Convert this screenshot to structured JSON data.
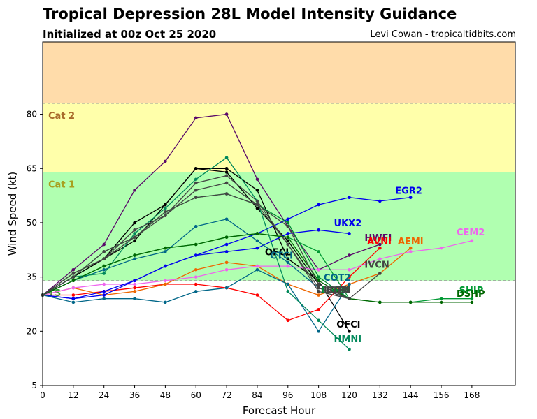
{
  "header": {
    "title": "Tropical Depression 28L Model Intensity Guidance",
    "subtitle": "Initialized at 00z Oct 25 2020",
    "credit": "Levi Cowan - tropicaltidbits.com"
  },
  "chart_data": {
    "type": "line",
    "xlabel": "Forecast Hour",
    "ylabel": "Wind Speed (kt)",
    "xlim": [
      0,
      185
    ],
    "ylim": [
      5,
      100
    ],
    "xticks": [
      0,
      12,
      24,
      36,
      48,
      60,
      72,
      84,
      96,
      108,
      120,
      132,
      144,
      156,
      168
    ],
    "yticks": [
      5,
      20,
      35,
      50,
      65,
      80
    ],
    "bands": [
      {
        "name": "Cat 2",
        "from": 83,
        "to": 100,
        "color": "#ffdcaa",
        "label_color": "#a86a2a"
      },
      {
        "name": "Cat 1",
        "from": 64,
        "to": 83,
        "color": "#ffffaa",
        "label_color": "#a8a020"
      },
      {
        "name": "TS",
        "from": 34,
        "to": 64,
        "color": "#b0ffb0",
        "label_color": "#2aa02a"
      }
    ],
    "series": [
      {
        "name": "OFCI",
        "color": "#000000",
        "x": [
          0,
          12,
          24,
          36,
          48,
          60,
          72,
          84,
          96,
          108,
          120
        ],
        "values": [
          30,
          35,
          40,
          45,
          55,
          65,
          65,
          59,
          40,
          34,
          20
        ]
      },
      {
        "name": "OFCL",
        "color": "#000000",
        "x": [
          0,
          12,
          24,
          36,
          48,
          60,
          72,
          84,
          96,
          108,
          120
        ],
        "values": [
          30,
          35,
          40,
          50,
          55,
          65,
          64,
          54,
          45,
          33,
          29
        ]
      },
      {
        "name": "HWFI",
        "color": "#5a0a6a",
        "x": [
          0,
          12,
          24,
          36,
          48,
          60,
          72,
          84,
          96,
          108,
          120,
          132
        ],
        "values": [
          30,
          37,
          44,
          59,
          67,
          79,
          80,
          62,
          49,
          37,
          41,
          44
        ]
      },
      {
        "name": "AVNI",
        "color": "#ff0000",
        "x": [
          0,
          12,
          24,
          36,
          48,
          60,
          72,
          84,
          96,
          108,
          120,
          132
        ],
        "values": [
          30,
          30,
          31,
          32,
          33,
          33,
          32,
          30,
          23,
          26,
          35,
          43
        ]
      },
      {
        "name": "AEMI",
        "color": "#ee6600",
        "x": [
          0,
          12,
          24,
          36,
          48,
          60,
          72,
          84,
          96,
          108,
          120,
          132,
          144
        ],
        "values": [
          30,
          32,
          30,
          31,
          33,
          37,
          39,
          38,
          33,
          30,
          33,
          36,
          43
        ]
      },
      {
        "name": "CEM2",
        "color": "#ee66ee",
        "x": [
          0,
          12,
          24,
          36,
          48,
          60,
          72,
          84,
          96,
          108,
          120,
          132,
          144,
          156,
          168
        ],
        "values": [
          30,
          32,
          33,
          33,
          34,
          35,
          37,
          38,
          38,
          37,
          37,
          40,
          42,
          43,
          45
        ]
      },
      {
        "name": "EGR2",
        "color": "#0000ee",
        "x": [
          0,
          12,
          24,
          36,
          48,
          60,
          72,
          84,
          96,
          108,
          120,
          132,
          144
        ],
        "values": [
          30,
          29,
          30,
          34,
          38,
          41,
          44,
          47,
          51,
          55,
          57,
          56,
          57
        ]
      },
      {
        "name": "UKX2",
        "color": "#0000ee",
        "x": [
          0,
          12,
          24,
          36,
          48,
          60,
          72,
          84,
          96,
          108,
          120
        ],
        "values": [
          30,
          29,
          31,
          34,
          38,
          41,
          42,
          43,
          47,
          48,
          47
        ]
      },
      {
        "name": "CTCI",
        "color": "#006688",
        "x": [
          0,
          12,
          24,
          36,
          48,
          60,
          72,
          84,
          96,
          108,
          120
        ],
        "values": [
          30,
          28,
          29,
          29,
          28,
          31,
          32,
          37,
          33,
          20,
          33
        ]
      },
      {
        "name": "COT2",
        "color": "#006688",
        "x": [
          0,
          12,
          24,
          36,
          48,
          60,
          72,
          84,
          96,
          108,
          120
        ],
        "values": [
          30,
          34,
          37,
          40,
          42,
          49,
          51,
          45,
          39,
          32,
          29
        ]
      },
      {
        "name": "HMNI",
        "color": "#00885a",
        "x": [
          0,
          12,
          24,
          36,
          48,
          60,
          72,
          84,
          96,
          108,
          120
        ],
        "values": [
          30,
          35,
          36,
          47,
          54,
          62,
          68,
          56,
          31,
          23,
          15
        ]
      },
      {
        "name": "IVCN",
        "color": "#444444",
        "x": [
          0,
          12,
          24,
          36,
          48,
          60,
          72,
          84,
          96,
          108,
          120,
          132
        ],
        "values": [
          30,
          36,
          40,
          48,
          52,
          61,
          63,
          56,
          44,
          32,
          29,
          36
        ]
      },
      {
        "name": "ICON",
        "color": "#444444",
        "x": [
          0,
          12,
          24,
          36,
          48,
          60,
          72,
          84,
          96,
          108,
          120
        ],
        "values": [
          30,
          36,
          40,
          46,
          52,
          59,
          61,
          55,
          44,
          31,
          29
        ]
      },
      {
        "name": "SHIP",
        "color": "#009933",
        "x": [
          0,
          12,
          24,
          36,
          48,
          60,
          72,
          84,
          96,
          108,
          120,
          132,
          144,
          156,
          168
        ],
        "values": [
          30,
          34,
          38,
          41,
          43,
          44,
          46,
          47,
          46,
          42,
          29,
          28,
          28,
          29,
          29
        ]
      },
      {
        "name": "DSHP",
        "color": "#006600",
        "x": [
          0,
          12,
          24,
          36,
          48,
          60,
          72,
          84,
          96,
          108,
          120,
          132,
          144,
          156,
          168
        ],
        "values": [
          30,
          34,
          38,
          41,
          43,
          44,
          46,
          47,
          46,
          34,
          29,
          28,
          28,
          28,
          28
        ]
      },
      {
        "name": "LGEM",
        "color": "#008833",
        "x": [
          0,
          12,
          24,
          36,
          48,
          60,
          72,
          84,
          96,
          108,
          120
        ],
        "values": [
          30,
          35,
          42,
          46,
          53,
          57,
          58,
          55,
          50,
          35,
          29
        ]
      },
      {
        "name": "IGEN",
        "color": "#444444",
        "x": [
          0,
          12,
          24,
          36,
          48,
          60,
          72,
          84,
          96,
          108,
          120
        ],
        "values": [
          30,
          35,
          42,
          46,
          53,
          57,
          58,
          55,
          49,
          33,
          29
        ]
      }
    ],
    "labels": [
      {
        "text": "EGR2",
        "x": 138,
        "y": 58,
        "color": "#0000ee"
      },
      {
        "text": "UKX2",
        "x": 114,
        "y": 49,
        "color": "#0000ee"
      },
      {
        "text": "HWFI",
        "x": 126,
        "y": 45,
        "color": "#5a0a6a"
      },
      {
        "text": "AVNI",
        "x": 127,
        "y": 44,
        "color": "#ff0000"
      },
      {
        "text": "AEMI",
        "x": 139,
        "y": 44,
        "color": "#ee6600"
      },
      {
        "text": "CEM2",
        "x": 162,
        "y": 46.5,
        "color": "#ee66ee"
      },
      {
        "text": "OFCL",
        "x": 87,
        "y": 41,
        "color": "#000000"
      },
      {
        "text": "CTCI",
        "x": 89,
        "y": 40,
        "color": "#006688"
      },
      {
        "text": "IVCN",
        "x": 126,
        "y": 37.5,
        "color": "#444444"
      },
      {
        "text": "COT2",
        "x": 110,
        "y": 34,
        "color": "#006688"
      },
      {
        "text": "LGEM",
        "x": 109,
        "y": 30.5,
        "color": "#008833"
      },
      {
        "text": "ICON",
        "x": 110,
        "y": 30.5,
        "color": "#444444"
      },
      {
        "text": "IGEN",
        "x": 111,
        "y": 30.5,
        "color": "#444444"
      },
      {
        "text": "SHIP",
        "x": 163,
        "y": 30.5,
        "color": "#009933"
      },
      {
        "text": "DSHP",
        "x": 162,
        "y": 29.5,
        "color": "#006600"
      },
      {
        "text": "OFCI",
        "x": 115,
        "y": 21,
        "color": "#000000"
      },
      {
        "text": "HMNI",
        "x": 114,
        "y": 17,
        "color": "#00885a"
      }
    ]
  }
}
